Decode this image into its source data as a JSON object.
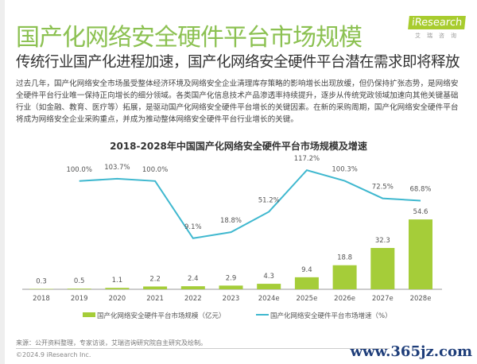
{
  "header": {
    "title": "国产化网络安全硬件平台市场规模",
    "subtitle": "传统行业国产化进程加速，国产化网络安全硬件平台潜在需求即将释放",
    "body": "过去几年，国产化网络安全市场虽受整体经济环境及网络安全企业清理库存策略的影响增长出现放缓，但仍保持扩张态势，是网络安全硬件平台行业唯一保持正向增长的细分领域。各类国产化信息技术产品渗透率持续提升，逐步从传统党政领域加速向其他关键基础行业（如金融、教育、医疗等）拓展，是驱动国产化网络安全硬件平台增长的关键因素。在新的采购周期，国产化网络安全硬件平台将成为网络安全企业采购重点，并成为推动整体网络安全硬件平台行业增长的关键。"
  },
  "logo": {
    "name": "iResearch",
    "sub": "艾瑞咨询"
  },
  "chart_data": {
    "type": "bar+line",
    "title": "2018-2028年中国国产化网络安全硬件平台市场规模及增速",
    "categories": [
      "2018",
      "2019",
      "2020",
      "2021",
      "2022",
      "2023",
      "2024e",
      "2025e",
      "2026e",
      "2027e",
      "2028e"
    ],
    "series": [
      {
        "name": "国产化网络安全硬件平台市场规模（亿元）",
        "type": "bar",
        "color": "#a5cd39",
        "values": [
          0.3,
          0.5,
          1.1,
          2.2,
          2.4,
          2.9,
          4.3,
          9.4,
          18.8,
          32.3,
          54.6
        ],
        "labels": [
          "0.3",
          "0.5",
          "1.1",
          "2.2",
          "2.4",
          "2.9",
          "4.3",
          "9.4",
          "18.8",
          "32.3",
          "54.6"
        ]
      },
      {
        "name": "国产化网络安全硬件平台市场增速（%）",
        "type": "line",
        "color": "#3fb8cf",
        "values": [
          null,
          100.0,
          103.7,
          100.0,
          9.1,
          18.8,
          51.2,
          117.2,
          100.3,
          72.5,
          68.8
        ],
        "labels": [
          "",
          "100.0%",
          "103.7%",
          "100.0%",
          "9.1%",
          "18.8%",
          "51.2%",
          "117.2%",
          "100.3%",
          "72.5%",
          "68.8%"
        ]
      }
    ],
    "legend": "bottom",
    "grid": false
  },
  "footer": {
    "source": "来源：公开资料整理，专家访谈，艾瑞咨询研究院自主研究及绘制。",
    "copyright": "©2024.9 iResearch Inc.",
    "watermark": "www.365jz.com"
  }
}
